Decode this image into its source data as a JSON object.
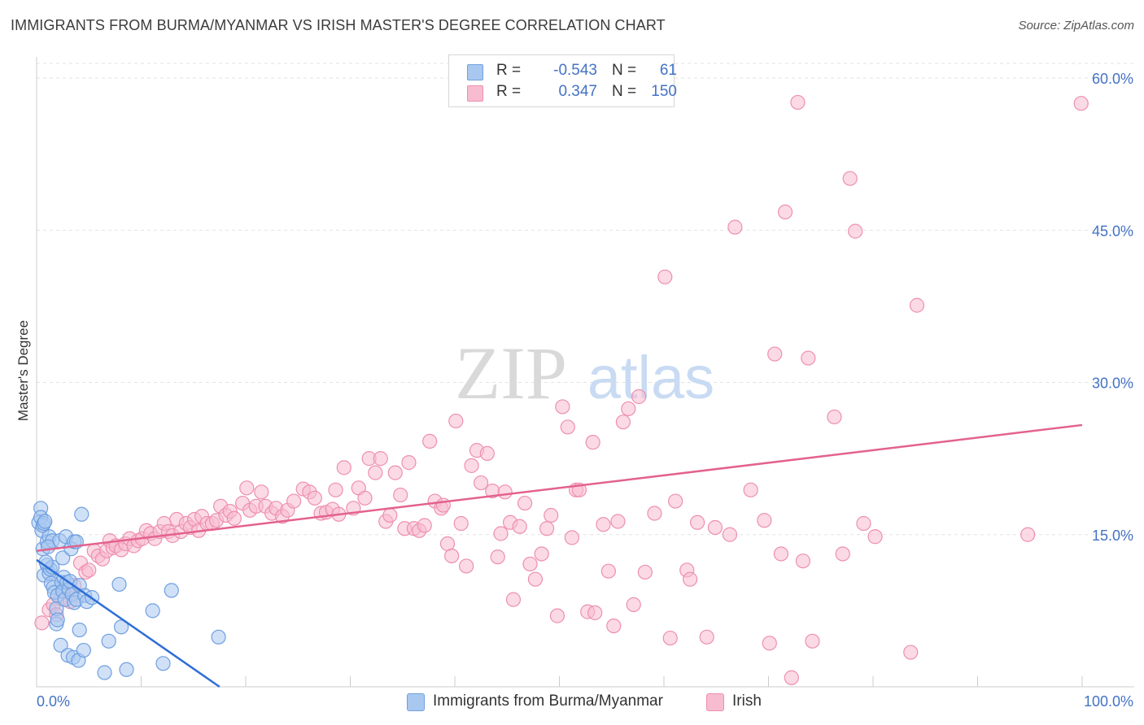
{
  "title": "IMMIGRANTS FROM BURMA/MYANMAR VS IRISH MASTER'S DEGREE CORRELATION CHART",
  "source": "Source: ZipAtlas.com",
  "watermark": {
    "zip": "ZIP",
    "atlas": "atlas"
  },
  "legend": {
    "r_label": "R =",
    "n_label": "N =",
    "rows": [
      {
        "r": "-0.543",
        "n": "61"
      },
      {
        "r": "0.347",
        "n": "150"
      }
    ]
  },
  "bottom_legend": [
    "Immigrants from Burma/Myanmar",
    "Irish"
  ],
  "colors": {
    "blue_fill": "#a9c8f0",
    "blue_stroke": "#6f9fe0",
    "blue_line": "#2e6fd6",
    "pink_fill": "#f7bcd0",
    "pink_stroke": "#ee8fae",
    "pink_line": "#e3628c",
    "axis_label": "#4472c4"
  },
  "chart_data": {
    "type": "scatter",
    "title": "IMMIGRANTS FROM BURMA/MYANMAR VS IRISH MASTER'S DEGREE CORRELATION CHART",
    "xlabel": "",
    "ylabel": "Master's Degree",
    "xlim": [
      0,
      100
    ],
    "ylim": [
      0,
      60
    ],
    "x_tick_labels": [
      "0.0%",
      "100.0%"
    ],
    "y_ticks": [
      15,
      30,
      45,
      60
    ],
    "y_tick_labels": [
      "15.0%",
      "30.0%",
      "45.0%",
      "60.0%"
    ],
    "series": [
      {
        "name": "Immigrants from Burma/Myanmar",
        "r": -0.543,
        "n": 61,
        "trend": {
          "x": [
            0,
            17.5
          ],
          "y": [
            12.5,
            0
          ]
        },
        "points": [
          [
            0.2,
            16.2
          ],
          [
            0.4,
            17.6
          ],
          [
            0.4,
            16.7
          ],
          [
            0.5,
            15.4
          ],
          [
            0.6,
            15.9
          ],
          [
            0.6,
            13.6
          ],
          [
            0.7,
            16.1
          ],
          [
            0.7,
            11.0
          ],
          [
            0.8,
            16.3
          ],
          [
            1.0,
            14.3
          ],
          [
            1.0,
            12.0
          ],
          [
            1.2,
            11.2
          ],
          [
            1.2,
            14.8
          ],
          [
            1.3,
            11.6
          ],
          [
            1.4,
            10.2
          ],
          [
            1.5,
            14.4
          ],
          [
            1.5,
            11.8
          ],
          [
            1.6,
            9.8
          ],
          [
            1.7,
            9.3
          ],
          [
            1.9,
            6.2
          ],
          [
            1.9,
            7.7
          ],
          [
            2.0,
            6.6
          ],
          [
            2.0,
            9.0
          ],
          [
            2.2,
            14.4
          ],
          [
            2.3,
            4.1
          ],
          [
            2.4,
            10.3
          ],
          [
            2.5,
            9.4
          ],
          [
            2.5,
            12.7
          ],
          [
            2.6,
            10.8
          ],
          [
            2.7,
            8.6
          ],
          [
            2.8,
            14.8
          ],
          [
            2.9,
            10.3
          ],
          [
            3.0,
            3.1
          ],
          [
            3.1,
            9.6
          ],
          [
            3.2,
            10.4
          ],
          [
            3.3,
            13.6
          ],
          [
            3.4,
            9.1
          ],
          [
            3.5,
            2.9
          ],
          [
            3.6,
            8.3
          ],
          [
            3.6,
            14.3
          ],
          [
            3.8,
            8.6
          ],
          [
            3.8,
            14.3
          ],
          [
            4.0,
            2.6
          ],
          [
            4.1,
            10.0
          ],
          [
            4.1,
            5.6
          ],
          [
            4.3,
            17.0
          ],
          [
            4.5,
            3.6
          ],
          [
            4.6,
            9.0
          ],
          [
            4.8,
            8.4
          ],
          [
            5.3,
            8.8
          ],
          [
            6.5,
            1.4
          ],
          [
            6.9,
            4.5
          ],
          [
            7.9,
            10.1
          ],
          [
            8.1,
            5.9
          ],
          [
            8.6,
            1.7
          ],
          [
            11.1,
            7.5
          ],
          [
            12.1,
            2.3
          ],
          [
            12.9,
            9.5
          ],
          [
            17.4,
            4.9
          ],
          [
            0.9,
            12.3
          ],
          [
            1.1,
            13.8
          ]
        ]
      },
      {
        "name": "Irish",
        "r": 0.347,
        "n": 150,
        "trend": {
          "x": [
            0,
            100
          ],
          "y": [
            13.4,
            25.8
          ]
        },
        "points": [
          [
            0.5,
            6.3
          ],
          [
            1.2,
            7.6
          ],
          [
            1.6,
            8.1
          ],
          [
            1.9,
            7.1
          ],
          [
            2.3,
            8.7
          ],
          [
            2.6,
            9.4
          ],
          [
            3.2,
            8.4
          ],
          [
            3.6,
            10.0
          ],
          [
            4.2,
            12.2
          ],
          [
            4.7,
            11.3
          ],
          [
            5.0,
            11.5
          ],
          [
            5.5,
            13.4
          ],
          [
            5.9,
            12.9
          ],
          [
            6.3,
            12.6
          ],
          [
            6.7,
            13.4
          ],
          [
            7.0,
            14.4
          ],
          [
            7.3,
            13.7
          ],
          [
            7.6,
            13.9
          ],
          [
            8.1,
            13.5
          ],
          [
            8.5,
            14.1
          ],
          [
            8.9,
            14.6
          ],
          [
            9.3,
            13.9
          ],
          [
            9.7,
            14.4
          ],
          [
            10.1,
            14.6
          ],
          [
            10.5,
            15.4
          ],
          [
            10.9,
            15.1
          ],
          [
            11.3,
            14.6
          ],
          [
            11.8,
            15.3
          ],
          [
            12.2,
            16.1
          ],
          [
            12.6,
            15.3
          ],
          [
            13.0,
            14.9
          ],
          [
            13.4,
            16.5
          ],
          [
            13.8,
            15.3
          ],
          [
            14.3,
            16.1
          ],
          [
            14.7,
            15.7
          ],
          [
            15.1,
            16.5
          ],
          [
            15.5,
            15.4
          ],
          [
            15.8,
            16.8
          ],
          [
            16.3,
            16.1
          ],
          [
            16.8,
            16.1
          ],
          [
            17.2,
            16.4
          ],
          [
            17.6,
            17.8
          ],
          [
            18.1,
            16.9
          ],
          [
            18.5,
            17.3
          ],
          [
            18.9,
            16.6
          ],
          [
            19.7,
            18.1
          ],
          [
            20.1,
            19.6
          ],
          [
            20.4,
            17.4
          ],
          [
            21.0,
            17.8
          ],
          [
            21.5,
            19.2
          ],
          [
            21.9,
            17.8
          ],
          [
            22.5,
            17.1
          ],
          [
            22.9,
            17.6
          ],
          [
            23.5,
            16.8
          ],
          [
            24.0,
            17.4
          ],
          [
            24.6,
            18.3
          ],
          [
            25.5,
            19.5
          ],
          [
            26.1,
            19.2
          ],
          [
            26.6,
            18.6
          ],
          [
            27.2,
            17.1
          ],
          [
            27.7,
            17.2
          ],
          [
            28.3,
            17.5
          ],
          [
            28.9,
            17.0
          ],
          [
            28.6,
            19.4
          ],
          [
            29.4,
            21.6
          ],
          [
            30.3,
            17.6
          ],
          [
            30.8,
            19.6
          ],
          [
            31.4,
            18.6
          ],
          [
            31.8,
            22.5
          ],
          [
            32.4,
            21.1
          ],
          [
            32.9,
            22.5
          ],
          [
            33.4,
            16.3
          ],
          [
            33.8,
            16.9
          ],
          [
            34.3,
            21.1
          ],
          [
            34.8,
            18.9
          ],
          [
            35.2,
            15.6
          ],
          [
            35.6,
            22.1
          ],
          [
            36.1,
            15.6
          ],
          [
            36.6,
            15.4
          ],
          [
            37.1,
            15.9
          ],
          [
            37.6,
            24.2
          ],
          [
            38.1,
            18.3
          ],
          [
            38.7,
            17.6
          ],
          [
            38.9,
            17.9
          ],
          [
            39.3,
            14.1
          ],
          [
            39.7,
            12.9
          ],
          [
            40.1,
            26.2
          ],
          [
            40.6,
            16.1
          ],
          [
            41.1,
            11.9
          ],
          [
            41.6,
            21.8
          ],
          [
            42.1,
            23.3
          ],
          [
            42.5,
            20.1
          ],
          [
            43.1,
            23.0
          ],
          [
            43.6,
            19.3
          ],
          [
            44.1,
            12.8
          ],
          [
            44.4,
            15.1
          ],
          [
            44.8,
            19.2
          ],
          [
            45.3,
            16.2
          ],
          [
            45.6,
            8.6
          ],
          [
            46.2,
            15.8
          ],
          [
            46.7,
            18.1
          ],
          [
            47.2,
            12.1
          ],
          [
            47.7,
            10.6
          ],
          [
            48.3,
            13.1
          ],
          [
            48.8,
            15.6
          ],
          [
            49.2,
            16.9
          ],
          [
            49.8,
            7.0
          ],
          [
            50.3,
            27.6
          ],
          [
            50.8,
            25.6
          ],
          [
            51.2,
            14.7
          ],
          [
            51.6,
            19.4
          ],
          [
            51.9,
            19.4
          ],
          [
            52.7,
            7.4
          ],
          [
            53.2,
            24.1
          ],
          [
            53.4,
            7.3
          ],
          [
            54.2,
            16.0
          ],
          [
            54.7,
            11.4
          ],
          [
            55.2,
            6.0
          ],
          [
            55.6,
            16.3
          ],
          [
            56.1,
            26.1
          ],
          [
            56.6,
            27.4
          ],
          [
            57.1,
            8.1
          ],
          [
            57.6,
            28.6
          ],
          [
            58.2,
            11.3
          ],
          [
            59.1,
            17.1
          ],
          [
            60.1,
            40.4
          ],
          [
            60.6,
            4.8
          ],
          [
            61.1,
            18.3
          ],
          [
            62.2,
            11.5
          ],
          [
            62.5,
            10.6
          ],
          [
            63.2,
            16.2
          ],
          [
            64.1,
            4.9
          ],
          [
            64.9,
            15.7
          ],
          [
            66.3,
            15.0
          ],
          [
            66.8,
            45.3
          ],
          [
            68.3,
            19.4
          ],
          [
            69.6,
            16.4
          ],
          [
            70.1,
            4.3
          ],
          [
            70.6,
            32.8
          ],
          [
            71.2,
            13.1
          ],
          [
            71.6,
            46.8
          ],
          [
            72.2,
            0.9
          ],
          [
            72.8,
            57.6
          ],
          [
            73.3,
            12.4
          ],
          [
            73.8,
            32.4
          ],
          [
            74.2,
            4.5
          ],
          [
            76.3,
            26.6
          ],
          [
            77.1,
            13.1
          ],
          [
            77.8,
            50.1
          ],
          [
            78.3,
            44.9
          ],
          [
            79.1,
            16.1
          ],
          [
            80.2,
            14.8
          ],
          [
            83.6,
            3.4
          ],
          [
            84.2,
            37.6
          ],
          [
            94.8,
            15.0
          ],
          [
            99.9,
            57.5
          ]
        ]
      }
    ]
  }
}
